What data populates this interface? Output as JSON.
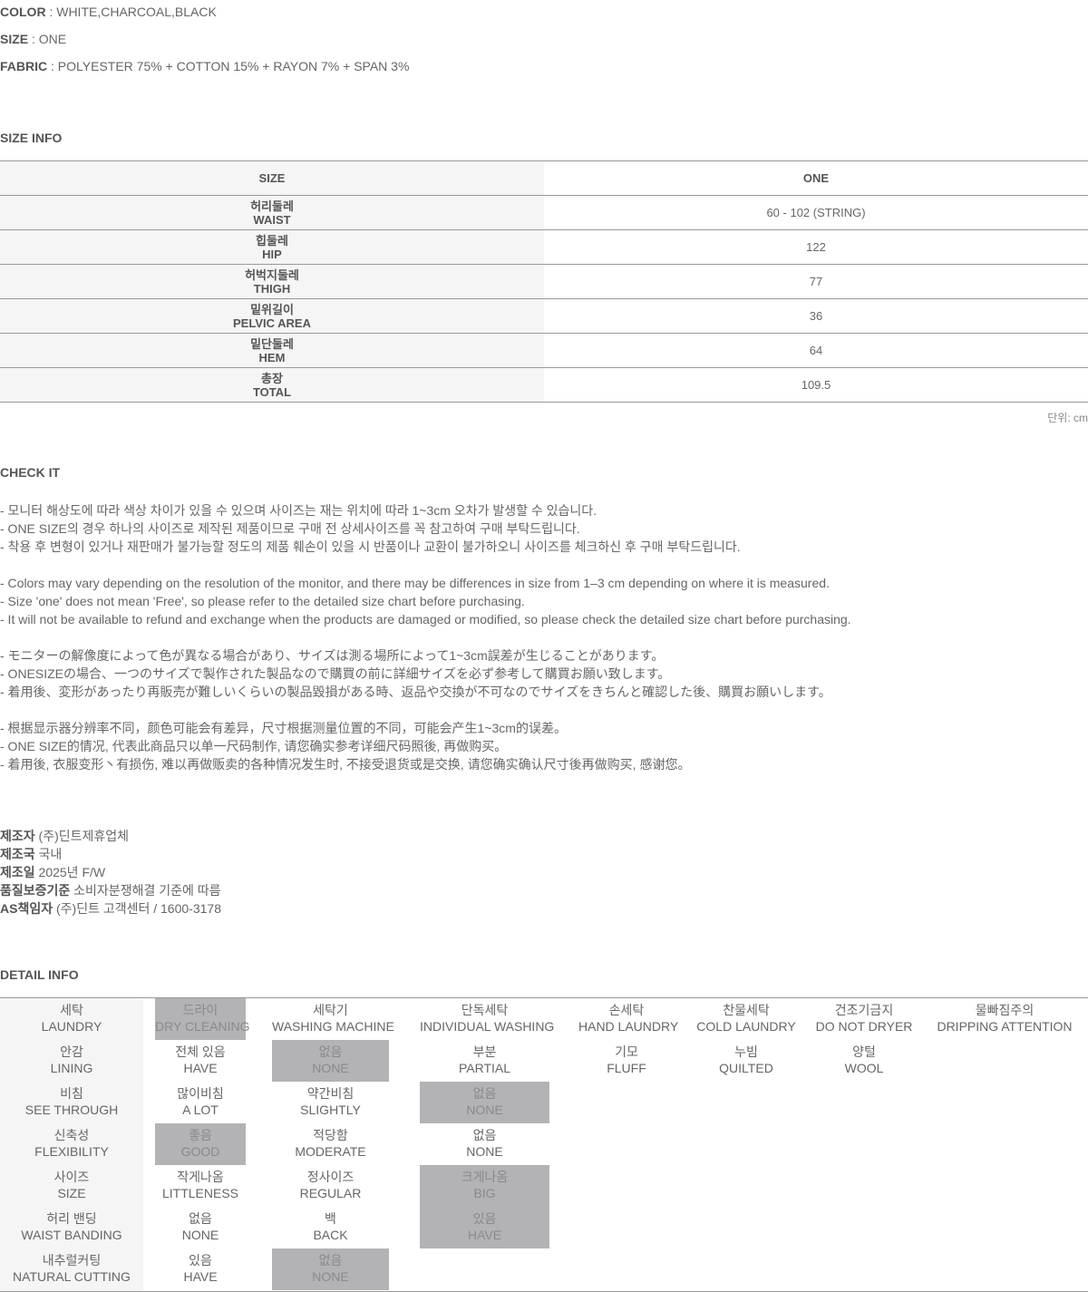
{
  "specs": [
    {
      "label": "COLOR",
      "value": " : WHITE,CHARCOAL,BLACK"
    },
    {
      "label": "SIZE",
      "value": " : ONE"
    },
    {
      "label": "FABRIC",
      "value": " : POLYESTER 75% + COTTON 15% + RAYON 7% + SPAN 3%"
    }
  ],
  "size_info": {
    "title": "SIZE INFO",
    "header": [
      "SIZE",
      "ONE"
    ],
    "rows": [
      {
        "ko": "허리둘레",
        "en": "WAIST",
        "value": "60 - 102 (STRING)"
      },
      {
        "ko": "힙둘레",
        "en": "HIP",
        "value": "122"
      },
      {
        "ko": "허벅지둘레",
        "en": "THIGH",
        "value": "77"
      },
      {
        "ko": "밑위길이",
        "en": "PELVIC AREA",
        "value": "36"
      },
      {
        "ko": "밑단둘레",
        "en": "HEM",
        "value": "64"
      },
      {
        "ko": "총장",
        "en": "TOTAL",
        "value": "109.5"
      }
    ],
    "unit": "단위: cm"
  },
  "check_it": {
    "title": "CHECK IT",
    "lines": [
      "- 모니터 해상도에 따라 색상 차이가 있을 수 있으며 사이즈는 재는 위치에 따라 1~3cm 오차가 발생할 수 있습니다.",
      "- ONE SIZE의 경우 하나의 사이즈로 제작된 제품이므로 구매 전 상세사이즈를 꼭 참고하여 구매 부탁드립니다.",
      "- 착용 후 변형이 있거나 재판매가 불가능할 정도의 제품 훼손이 있을 시 반품이나 교환이 불가하오니 사이즈를 체크하신 후 구매 부탁드립니다.",
      "",
      "- Colors may vary depending on the resolution of the monitor, and there may be differences in size from 1–3 cm depending on where it is measured.",
      "- Size 'one' does not mean 'Free', so please refer to the detailed size chart before purchasing.",
      "- It will not be available to refund and exchange when the products are damaged or modified, so please check the detailed size chart before purchasing.",
      "",
      "- モニターの解像度によって色が異なる場合があり、サイズは測る場所によって1~3cm誤差が生じることがあります。",
      "- ONESIZEの場合、一つのサイズで製作された製品なので購買の前に詳細サイズを必ず参考して購買お願い致します。",
      "- 着用後、変形があったり再販売が難しいくらいの製品毀損がある時、返品や交換が不可なのでサイズをきちんと確認した後、購買お願いします。",
      "",
      "- 根据显示器分辨率不同，颜色可能会有差异，尺寸根据测量位置的不同，可能会产生1~3cm的误差。",
      "- ONE SIZE的情况, 代表此商品只以单一尺码制作, 请您确实参考详细尺码照後, 再做购买。",
      "- 着用後, 衣服变形丶有损伤, 难以再做贩卖的各种情况发生时, 不接受退货或是交换, 请您确实确认尺寸後再做购买, 感谢您。"
    ]
  },
  "manufacturer": [
    {
      "label": "제조자",
      "value": " (주)딘트제휴업체"
    },
    {
      "label": "제조국",
      "value": " 국내"
    },
    {
      "label": "제조일",
      "value": " 2025년 F/W"
    },
    {
      "label": "품질보증기준",
      "value": " 소비자분쟁해결 기준에 따름"
    },
    {
      "label": "AS책임자",
      "value": " (주)딘트 고객센터 / 1600-3178"
    }
  ],
  "detail_info": {
    "title": "DETAIL INFO",
    "highlight_color": "#b3b2b4",
    "rows": [
      [
        {
          "ko": "세탁",
          "en": "LAUNDRY"
        },
        {
          "ko": "드라이",
          "en": "DRY CLEANING",
          "on": true
        },
        {
          "ko": "세탁기",
          "en": "WASHING MACHINE"
        },
        {
          "ko": "단독세탁",
          "en": "INDIVIDUAL WASHING"
        },
        {
          "ko": "손세탁",
          "en": "HAND LAUNDRY"
        },
        {
          "ko": "찬물세탁",
          "en": "COLD LAUNDRY"
        },
        {
          "ko": "건조기금지",
          "en": "DO NOT DRYER"
        },
        {
          "ko": "물빠짐주의",
          "en": "DRIPPING ATTENTION"
        }
      ],
      [
        {
          "ko": "안감",
          "en": "LINING"
        },
        {
          "ko": "전체 있음",
          "en": "HAVE"
        },
        {
          "ko": "없음",
          "en": "NONE",
          "on": true
        },
        {
          "ko": "부분",
          "en": "PARTIAL"
        },
        {
          "ko": "기모",
          "en": "FLUFF"
        },
        {
          "ko": "누빔",
          "en": "QUILTED"
        },
        {
          "ko": "양털",
          "en": "WOOL"
        }
      ],
      [
        {
          "ko": "비침",
          "en": "SEE THROUGH"
        },
        {
          "ko": "많이비침",
          "en": "A LOT"
        },
        {
          "ko": "약간비침",
          "en": "SLIGHTLY"
        },
        {
          "ko": "없음",
          "en": "NONE",
          "on": true
        }
      ],
      [
        {
          "ko": "신축성",
          "en": "FLEXIBILITY"
        },
        {
          "ko": "좋음",
          "en": "GOOD",
          "on": true
        },
        {
          "ko": "적당함",
          "en": "MODERATE"
        },
        {
          "ko": "없음",
          "en": "NONE"
        }
      ],
      [
        {
          "ko": "사이즈",
          "en": "SIZE"
        },
        {
          "ko": "작게나옴",
          "en": "LITTLENESS"
        },
        {
          "ko": "정사이즈",
          "en": "REGULAR"
        },
        {
          "ko": "크게나옴",
          "en": "BIG",
          "on": true
        }
      ],
      [
        {
          "ko": "허리 밴딩",
          "en": "WAIST BANDING"
        },
        {
          "ko": "없음",
          "en": "NONE"
        },
        {
          "ko": "백",
          "en": "BACK"
        },
        {
          "ko": "있음",
          "en": "HAVE",
          "on": true
        }
      ],
      [
        {
          "ko": "내추럴커팅",
          "en": "NATURAL CUTTING"
        },
        {
          "ko": "있음",
          "en": "HAVE"
        },
        {
          "ko": "없음",
          "en": "NONE",
          "on": true
        }
      ]
    ]
  }
}
